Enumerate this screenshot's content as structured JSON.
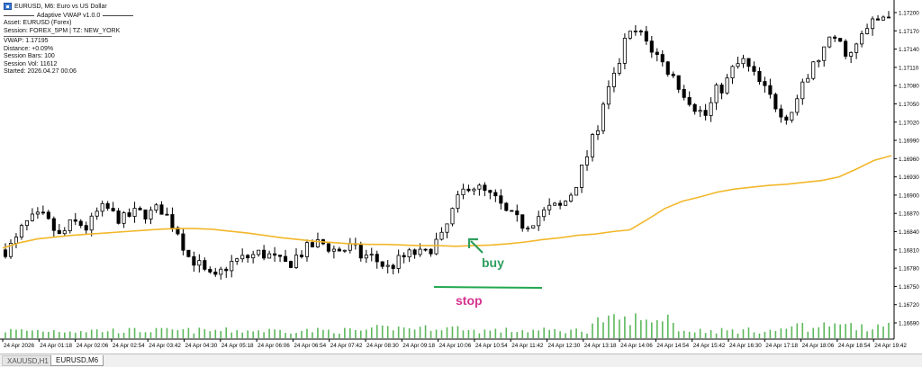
{
  "window": {
    "title": "EURUSD, M6:  Euro vs US Dollar"
  },
  "indicator": {
    "name": "Adaptive VWAP v1.0.0",
    "asset": "Asset: EURUSD (Forex)",
    "session": "Session: FOREX_5PM | TZ: NEW_YORK",
    "vwap": "VWAP: 1.17195",
    "distance": "Distance: +0.09%",
    "session_bars": "Session Bars: 100",
    "session_vol": "Session Vol: 11612",
    "started": "Started: 2026.04.27 00:06"
  },
  "annotations": {
    "buy_label": "buy",
    "stop_label": "stop",
    "buy_color": "#2e9e5e",
    "stop_color": "#d6338f",
    "stop_line_color": "#22a84f"
  },
  "colors": {
    "vwap_line": "#f2b72b",
    "candle_up_fill": "#ffffff",
    "candle_down_fill": "#000000",
    "volume_bars": "#5cb85c",
    "axis": "#000000"
  },
  "tabs": [
    {
      "label": "XAUUSD,H1",
      "active": false
    },
    {
      "label": "EURUSD,M6",
      "active": true
    }
  ],
  "chart_data": {
    "type": "candlestick",
    "symbol": "EURUSD",
    "timeframe": "M6",
    "ylim": [
      1.1666,
      1.1722
    ],
    "y_ticks": [
      "1.17200",
      "1.17170",
      "1.17140",
      "1.17110",
      "1.17080",
      "1.17050",
      "1.17020",
      "1.16990",
      "1.16960",
      "1.16930",
      "1.16900",
      "1.16870",
      "1.16840",
      "1.16810",
      "1.16780",
      "1.16750",
      "1.16720",
      "1.16690"
    ],
    "x_ticks": [
      "24 Apr 2026",
      "24 Apr 01:18",
      "24 Apr 02:06",
      "24 Apr 02:54",
      "24 Apr 03:42",
      "24 Apr 04:30",
      "24 Apr 05:18",
      "24 Apr 06:06",
      "24 Apr 06:54",
      "24 Apr 07:42",
      "24 Apr 08:30",
      "24 Apr 09:18",
      "24 Apr 10:06",
      "24 Apr 10:54",
      "24 Apr 11:42",
      "24 Apr 12:30",
      "24 Apr 13:18",
      "24 Apr 14:06",
      "24 Apr 14:54",
      "24 Apr 15:42",
      "24 Apr 16:30",
      "24 Apr 17:18",
      "24 Apr 18:06",
      "24 Apr 18:54",
      "24 Apr 19:42"
    ],
    "price_anchors": [
      1.1681,
      1.1682,
      1.1685,
      1.1686,
      1.16865,
      1.1685,
      1.1683,
      1.1685,
      1.16855,
      1.16845,
      1.1687,
      1.1688,
      1.16865,
      1.1686,
      1.1687,
      1.1687,
      1.1687,
      1.1688,
      1.1686,
      1.1684,
      1.168,
      1.1679,
      1.1677,
      1.1676,
      1.1678,
      1.1679,
      1.16795,
      1.168,
      1.16805,
      1.168,
      1.1679,
      1.16785,
      1.168,
      1.1681,
      1.1682,
      1.1682,
      1.1681,
      1.1681,
      1.16815,
      1.168,
      1.168,
      1.1679,
      1.1678,
      1.1679,
      1.168,
      1.16805,
      1.168,
      1.1682,
      1.1683,
      1.1687,
      1.169,
      1.1692,
      1.1691,
      1.169,
      1.1689,
      1.1687,
      1.1686,
      1.1685,
      1.1686,
      1.1687,
      1.1688,
      1.1688,
      1.169,
      1.1693,
      1.1697,
      1.1701,
      1.1706,
      1.171,
      1.1715,
      1.1717,
      1.1716,
      1.1714,
      1.1712,
      1.171,
      1.1708,
      1.1706,
      1.1704,
      1.1703,
      1.1707,
      1.1708,
      1.1711,
      1.1712,
      1.171,
      1.1708,
      1.1706,
      1.1704,
      1.1703,
      1.1706,
      1.1709,
      1.1712,
      1.1714,
      1.1716,
      1.1714,
      1.1713,
      1.1716,
      1.1718,
      1.1719,
      1.172
    ],
    "vwap": [
      1.16813,
      1.16822,
      1.16828,
      1.16831,
      1.16834,
      1.16836,
      1.16838,
      1.1684,
      1.16842,
      1.16844,
      1.16845,
      1.16845,
      1.16844,
      1.16841,
      1.16838,
      1.16834,
      1.1683,
      1.16827,
      1.16824,
      1.16822,
      1.1682,
      1.16819,
      1.16819,
      1.16818,
      1.16817,
      1.16817,
      1.16816,
      1.16817,
      1.16818,
      1.1682,
      1.16823,
      1.16827,
      1.1683,
      1.16834,
      1.16836,
      1.1684,
      1.16843,
      1.1686,
      1.16878,
      1.1689,
      1.16897,
      1.16905,
      1.1691,
      1.16913,
      1.16916,
      1.16918,
      1.16921,
      1.16924,
      1.1693,
      1.16943,
      1.16957,
      1.16965
    ],
    "volume_note": "tick volume histogram at bottom of chart"
  }
}
